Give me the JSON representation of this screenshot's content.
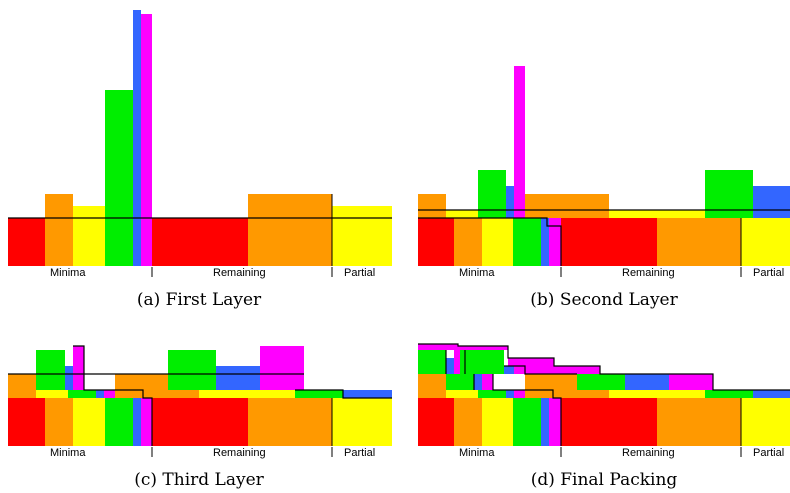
{
  "colors": {
    "red": "#ff0000",
    "orange": "#ff9900",
    "yellow": "#ffff00",
    "green": "#00ee00",
    "blue": "#3366ff",
    "magenta": "#ff00ff",
    "outline": "#000000"
  },
  "axis_labels": {
    "minima": "Minima",
    "remaining": "Remaining",
    "partial": "Partial"
  },
  "panels": [
    {
      "id": "a",
      "caption": "(a) First Layer"
    },
    {
      "id": "b",
      "caption": "(b) Second Layer"
    },
    {
      "id": "c",
      "caption": "(c) Third Layer"
    },
    {
      "id": "d",
      "caption": "(d) Final Packing"
    }
  ]
}
